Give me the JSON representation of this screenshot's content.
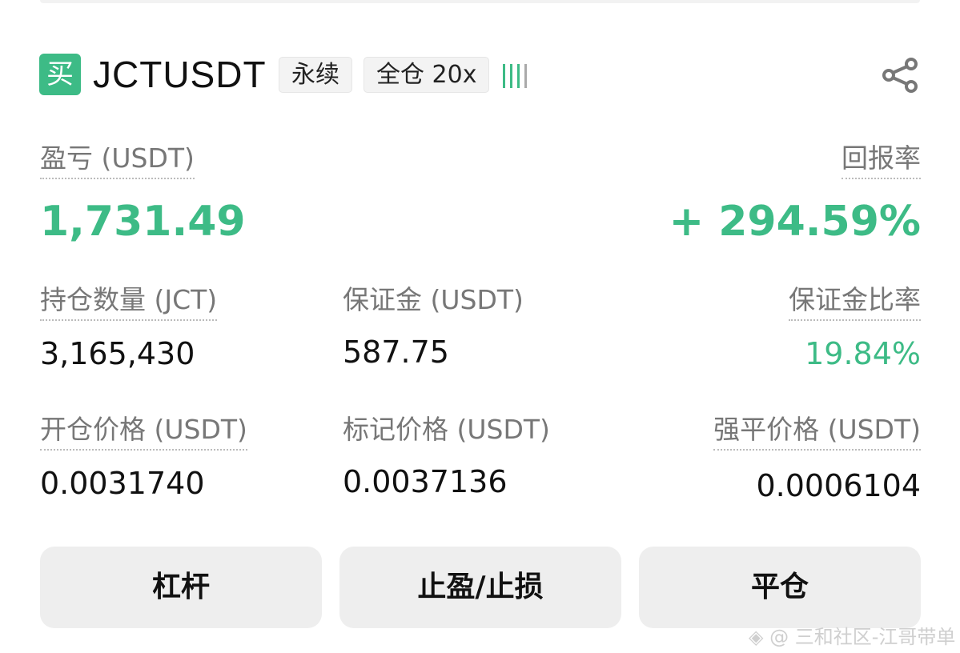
{
  "header": {
    "side_badge": "买",
    "symbol": "JCTUSDT",
    "tags": [
      "永续",
      "全仓 20x"
    ],
    "signal_level": 3,
    "signal_max": 4
  },
  "pnl": {
    "label": "盈亏 (USDT)",
    "value": "1,731.49"
  },
  "roi": {
    "label": "回报率",
    "value": "+ 294.59%"
  },
  "position_size": {
    "label": "持仓数量 (JCT)",
    "value": "3,165,430"
  },
  "margin": {
    "label": "保证金 (USDT)",
    "value": "587.75"
  },
  "margin_ratio": {
    "label": "保证金比率",
    "value": "19.84%"
  },
  "entry_price": {
    "label": "开仓价格 (USDT)",
    "value": "0.0031740"
  },
  "mark_price": {
    "label": "标记价格 (USDT)",
    "value": "0.0037136"
  },
  "liq_price": {
    "label": "强平价格 (USDT)",
    "value": "0.0006104"
  },
  "buttons": {
    "leverage": "杠杆",
    "tp_sl": "止盈/止损",
    "close": "平仓"
  },
  "watermark": "@ 三和社区-江哥带单",
  "colors": {
    "accent": "#3dbb86"
  }
}
